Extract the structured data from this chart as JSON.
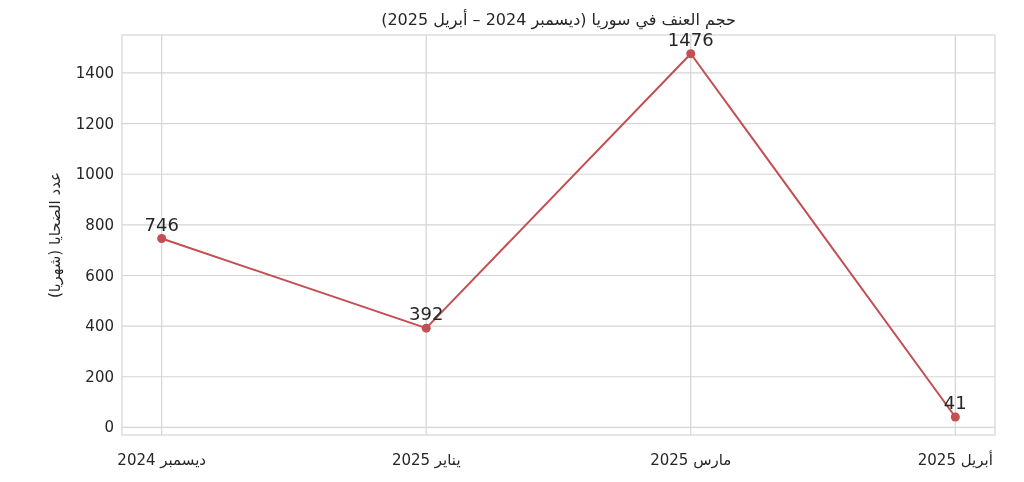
{
  "chart_data": {
    "type": "line",
    "title": "حجم العنف في سوريا (ديسمبر 2024 – أبريل 2025)",
    "ylabel": "عدد الضحايا (شهريا)",
    "categories": [
      "ديسمبر 2024",
      "يناير 2025",
      "مارس 2025",
      "أبريل 2025"
    ],
    "series": [
      {
        "color": "#c44e52",
        "values": [
          746,
          392,
          1476,
          41
        ]
      }
    ],
    "ylim": [
      -30,
      1550
    ],
    "yticks": [
      0,
      200,
      400,
      600,
      800,
      1000,
      1200,
      1400
    ],
    "grid": true,
    "marker": "circle",
    "line_style": "solid",
    "data_labels": true
  }
}
